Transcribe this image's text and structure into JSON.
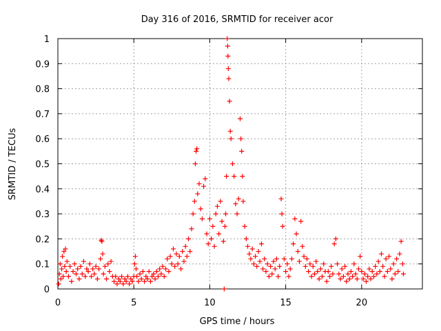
{
  "chart_data": {
    "type": "scatter",
    "title": "Day 316 of 2016, SRMTID for receiver acor",
    "xlabel": "GPS time / hours",
    "ylabel": "SRMTID / TECUs",
    "xlim": [
      0,
      24
    ],
    "ylim": [
      0,
      1
    ],
    "x_ticks": [
      0,
      5,
      10,
      15,
      20
    ],
    "y_ticks": [
      0,
      0.1,
      0.2,
      0.3,
      0.4,
      0.5,
      0.6,
      0.7,
      0.8,
      0.9,
      1
    ],
    "x_tick_labels": [
      "0",
      "5",
      "10",
      "15",
      "20"
    ],
    "y_tick_labels": [
      "0",
      "0.1",
      "0.2",
      "0.3",
      "0.4",
      "0.5",
      "0.6",
      "0.7",
      "0.8",
      "0.9",
      "1"
    ],
    "grid": true,
    "marker": "+",
    "color": "#ff0000",
    "series": [
      {
        "name": "SRMTID",
        "points": [
          [
            0.05,
            0.02
          ],
          [
            0.1,
            0.06
          ],
          [
            0.15,
            0.1
          ],
          [
            0.2,
            0.04
          ],
          [
            0.25,
            0.08
          ],
          [
            0.3,
            0.13
          ],
          [
            0.35,
            0.05
          ],
          [
            0.4,
            0.15
          ],
          [
            0.45,
            0.09
          ],
          [
            0.5,
            0.16
          ],
          [
            0.55,
            0.07
          ],
          [
            0.6,
            0.11
          ],
          [
            0.7,
            0.05
          ],
          [
            0.8,
            0.09
          ],
          [
            0.9,
            0.03
          ],
          [
            1.0,
            0.07
          ],
          [
            1.1,
            0.1
          ],
          [
            1.2,
            0.06
          ],
          [
            1.3,
            0.08
          ],
          [
            1.4,
            0.04
          ],
          [
            1.5,
            0.09
          ],
          [
            1.6,
            0.06
          ],
          [
            1.7,
            0.11
          ],
          [
            1.8,
            0.05
          ],
          [
            1.9,
            0.08
          ],
          [
            2.0,
            0.07
          ],
          [
            2.1,
            0.1
          ],
          [
            2.2,
            0.05
          ],
          [
            2.3,
            0.08
          ],
          [
            2.4,
            0.06
          ],
          [
            2.5,
            0.09
          ],
          [
            2.6,
            0.04
          ],
          [
            2.7,
            0.08
          ],
          [
            2.8,
            0.12
          ],
          [
            2.85,
            0.195
          ],
          [
            2.9,
            0.19
          ],
          [
            2.95,
            0.14
          ],
          [
            3.0,
            0.06
          ],
          [
            3.1,
            0.09
          ],
          [
            3.2,
            0.04
          ],
          [
            3.3,
            0.1
          ],
          [
            3.4,
            0.07
          ],
          [
            3.5,
            0.11
          ],
          [
            3.6,
            0.05
          ],
          [
            3.7,
            0.03
          ],
          [
            3.8,
            0.05
          ],
          [
            3.9,
            0.02
          ],
          [
            4.0,
            0.04
          ],
          [
            4.1,
            0.03
          ],
          [
            4.2,
            0.05
          ],
          [
            4.3,
            0.02
          ],
          [
            4.4,
            0.04
          ],
          [
            4.5,
            0.03
          ],
          [
            4.6,
            0.05
          ],
          [
            4.7,
            0.02
          ],
          [
            4.8,
            0.04
          ],
          [
            4.9,
            0.03
          ],
          [
            5.0,
            0.05
          ],
          [
            5.05,
            0.1
          ],
          [
            5.1,
            0.13
          ],
          [
            5.15,
            0.08
          ],
          [
            5.2,
            0.05
          ],
          [
            5.3,
            0.03
          ],
          [
            5.4,
            0.06
          ],
          [
            5.5,
            0.04
          ],
          [
            5.6,
            0.07
          ],
          [
            5.7,
            0.03
          ],
          [
            5.8,
            0.05
          ],
          [
            5.9,
            0.04
          ],
          [
            6.0,
            0.07
          ],
          [
            6.1,
            0.03
          ],
          [
            6.2,
            0.05
          ],
          [
            6.3,
            0.06
          ],
          [
            6.4,
            0.04
          ],
          [
            6.5,
            0.07
          ],
          [
            6.6,
            0.05
          ],
          [
            6.7,
            0.08
          ],
          [
            6.8,
            0.06
          ],
          [
            6.9,
            0.09
          ],
          [
            7.0,
            0.05
          ],
          [
            7.1,
            0.08
          ],
          [
            7.2,
            0.12
          ],
          [
            7.3,
            0.07
          ],
          [
            7.4,
            0.13
          ],
          [
            7.5,
            0.1
          ],
          [
            7.6,
            0.16
          ],
          [
            7.7,
            0.09
          ],
          [
            7.8,
            0.14
          ],
          [
            7.9,
            0.1
          ],
          [
            8.0,
            0.13
          ],
          [
            8.1,
            0.08
          ],
          [
            8.2,
            0.15
          ],
          [
            8.3,
            0.11
          ],
          [
            8.4,
            0.17
          ],
          [
            8.5,
            0.13
          ],
          [
            8.6,
            0.2
          ],
          [
            8.7,
            0.15
          ],
          [
            8.8,
            0.24
          ],
          [
            8.9,
            0.3
          ],
          [
            9.0,
            0.35
          ],
          [
            9.05,
            0.5
          ],
          [
            9.1,
            0.55
          ],
          [
            9.15,
            0.56
          ],
          [
            9.2,
            0.38
          ],
          [
            9.3,
            0.42
          ],
          [
            9.4,
            0.32
          ],
          [
            9.5,
            0.28
          ],
          [
            9.6,
            0.41
          ],
          [
            9.7,
            0.44
          ],
          [
            9.8,
            0.22
          ],
          [
            9.9,
            0.18
          ],
          [
            10.0,
            0.28
          ],
          [
            10.1,
            0.2
          ],
          [
            10.2,
            0.25
          ],
          [
            10.3,
            0.17
          ],
          [
            10.4,
            0.3
          ],
          [
            10.5,
            0.33
          ],
          [
            10.6,
            0.22
          ],
          [
            10.7,
            0.35
          ],
          [
            10.8,
            0.27
          ],
          [
            10.9,
            0.19
          ],
          [
            10.95,
            0.0
          ],
          [
            11.0,
            0.25
          ],
          [
            11.05,
            0.3
          ],
          [
            11.1,
            0.45
          ],
          [
            11.15,
            1.0
          ],
          [
            11.18,
            0.97
          ],
          [
            11.2,
            0.93
          ],
          [
            11.22,
            0.88
          ],
          [
            11.25,
            0.84
          ],
          [
            11.3,
            0.75
          ],
          [
            11.35,
            0.63
          ],
          [
            11.4,
            0.6
          ],
          [
            11.5,
            0.5
          ],
          [
            11.6,
            0.45
          ],
          [
            11.7,
            0.34
          ],
          [
            11.8,
            0.3
          ],
          [
            11.9,
            0.36
          ],
          [
            12.0,
            0.68
          ],
          [
            12.05,
            0.6
          ],
          [
            12.1,
            0.55
          ],
          [
            12.15,
            0.45
          ],
          [
            12.2,
            0.35
          ],
          [
            12.3,
            0.25
          ],
          [
            12.4,
            0.2
          ],
          [
            12.5,
            0.17
          ],
          [
            12.6,
            0.14
          ],
          [
            12.7,
            0.12
          ],
          [
            12.8,
            0.16
          ],
          [
            12.9,
            0.1
          ],
          [
            13.0,
            0.13
          ],
          [
            13.1,
            0.09
          ],
          [
            13.2,
            0.15
          ],
          [
            13.3,
            0.11
          ],
          [
            13.4,
            0.18
          ],
          [
            13.5,
            0.08
          ],
          [
            13.6,
            0.12
          ],
          [
            13.7,
            0.07
          ],
          [
            13.8,
            0.1
          ],
          [
            13.9,
            0.05
          ],
          [
            14.0,
            0.09
          ],
          [
            14.1,
            0.06
          ],
          [
            14.2,
            0.11
          ],
          [
            14.3,
            0.08
          ],
          [
            14.4,
            0.12
          ],
          [
            14.5,
            0.05
          ],
          [
            14.6,
            0.09
          ],
          [
            14.7,
            0.36
          ],
          [
            14.75,
            0.3
          ],
          [
            14.8,
            0.25
          ],
          [
            14.9,
            0.12
          ],
          [
            15.0,
            0.07
          ],
          [
            15.1,
            0.1
          ],
          [
            15.2,
            0.05
          ],
          [
            15.3,
            0.08
          ],
          [
            15.4,
            0.12
          ],
          [
            15.5,
            0.18
          ],
          [
            15.6,
            0.28
          ],
          [
            15.7,
            0.22
          ],
          [
            15.8,
            0.15
          ],
          [
            15.9,
            0.11
          ],
          [
            16.0,
            0.27
          ],
          [
            16.1,
            0.17
          ],
          [
            16.2,
            0.13
          ],
          [
            16.3,
            0.09
          ],
          [
            16.4,
            0.12
          ],
          [
            16.5,
            0.07
          ],
          [
            16.6,
            0.1
          ],
          [
            16.7,
            0.05
          ],
          [
            16.8,
            0.09
          ],
          [
            16.9,
            0.06
          ],
          [
            17.0,
            0.11
          ],
          [
            17.1,
            0.07
          ],
          [
            17.2,
            0.04
          ],
          [
            17.3,
            0.08
          ],
          [
            17.4,
            0.05
          ],
          [
            17.5,
            0.1
          ],
          [
            17.6,
            0.07
          ],
          [
            17.7,
            0.03
          ],
          [
            17.8,
            0.07
          ],
          [
            17.9,
            0.05
          ],
          [
            18.0,
            0.09
          ],
          [
            18.1,
            0.06
          ],
          [
            18.2,
            0.18
          ],
          [
            18.3,
            0.2
          ],
          [
            18.4,
            0.1
          ],
          [
            18.5,
            0.06
          ],
          [
            18.6,
            0.04
          ],
          [
            18.7,
            0.08
          ],
          [
            18.8,
            0.05
          ],
          [
            18.9,
            0.09
          ],
          [
            19.0,
            0.03
          ],
          [
            19.1,
            0.06
          ],
          [
            19.2,
            0.04
          ],
          [
            19.3,
            0.07
          ],
          [
            19.4,
            0.05
          ],
          [
            19.5,
            0.1
          ],
          [
            19.6,
            0.06
          ],
          [
            19.7,
            0.04
          ],
          [
            19.8,
            0.08
          ],
          [
            19.9,
            0.13
          ],
          [
            20.0,
            0.07
          ],
          [
            20.1,
            0.04
          ],
          [
            20.2,
            0.06
          ],
          [
            20.3,
            0.03
          ],
          [
            20.4,
            0.05
          ],
          [
            20.5,
            0.08
          ],
          [
            20.6,
            0.04
          ],
          [
            20.7,
            0.07
          ],
          [
            20.8,
            0.05
          ],
          [
            20.9,
            0.09
          ],
          [
            21.0,
            0.06
          ],
          [
            21.1,
            0.11
          ],
          [
            21.2,
            0.07
          ],
          [
            21.3,
            0.14
          ],
          [
            21.4,
            0.09
          ],
          [
            21.5,
            0.05
          ],
          [
            21.6,
            0.12
          ],
          [
            21.7,
            0.07
          ],
          [
            21.8,
            0.13
          ],
          [
            21.9,
            0.08
          ],
          [
            22.0,
            0.04
          ],
          [
            22.1,
            0.1
          ],
          [
            22.2,
            0.06
          ],
          [
            22.3,
            0.12
          ],
          [
            22.4,
            0.07
          ],
          [
            22.5,
            0.14
          ],
          [
            22.6,
            0.19
          ],
          [
            22.7,
            0.1
          ],
          [
            22.75,
            0.06
          ]
        ]
      }
    ]
  }
}
